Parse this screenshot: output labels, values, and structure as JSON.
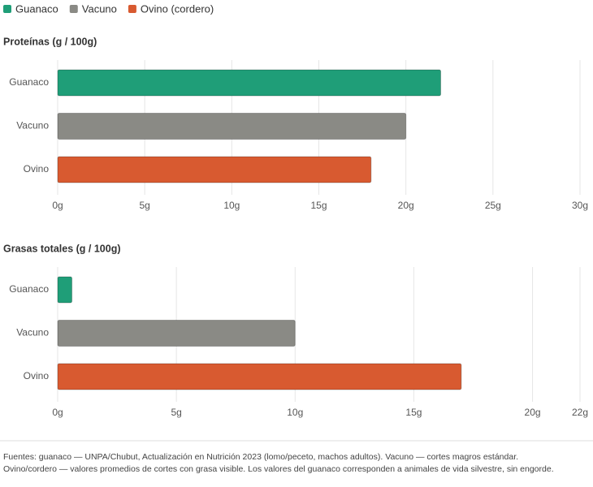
{
  "legend": {
    "items": [
      {
        "label": "Guanaco",
        "color": "#1f9e78"
      },
      {
        "label": "Vacuno",
        "color": "#8a8a85"
      },
      {
        "label": "Ovino (cordero)",
        "color": "#d85a30"
      }
    ]
  },
  "chart_data": [
    {
      "type": "hbar",
      "title": "Proteínas (g / 100g)",
      "categories": [
        "Guanaco",
        "Vacuno",
        "Ovino"
      ],
      "values": [
        22,
        20,
        18
      ],
      "colors": [
        "#1f9e78",
        "#8a8a85",
        "#d85a30"
      ],
      "xlim": [
        0,
        30
      ],
      "xticks": [
        {
          "value": 0,
          "label": "0g"
        },
        {
          "value": 5,
          "label": "5g"
        },
        {
          "value": 10,
          "label": "10g"
        },
        {
          "value": 15,
          "label": "15g"
        },
        {
          "value": 20,
          "label": "20g"
        },
        {
          "value": 25,
          "label": "25g"
        },
        {
          "value": 30,
          "label": "30g"
        }
      ],
      "grid": true
    },
    {
      "type": "hbar",
      "title": "Grasas totales (g / 100g)",
      "categories": [
        "Guanaco",
        "Vacuno",
        "Ovino"
      ],
      "values": [
        0.6,
        10,
        17
      ],
      "colors": [
        "#1f9e78",
        "#8a8a85",
        "#d85a30"
      ],
      "xlim": [
        0,
        22
      ],
      "xticks": [
        {
          "value": 0,
          "label": "0g"
        },
        {
          "value": 5,
          "label": "5g"
        },
        {
          "value": 10,
          "label": "10g"
        },
        {
          "value": 15,
          "label": "15g"
        },
        {
          "value": 20,
          "label": "20g"
        },
        {
          "value": 22,
          "label": "22g"
        }
      ],
      "grid": true
    }
  ],
  "footnote": {
    "lines": [
      "Fuentes: guanaco — UNPA/Chubut, Actualización en Nutrición 2023 (lomo/peceto, machos adultos). Vacuno — cortes magros estándar.",
      "Ovino/cordero — valores promedios de cortes con grasa visible. Los valores del guanaco corresponden a animales de vida silvestre, sin engorde."
    ]
  }
}
